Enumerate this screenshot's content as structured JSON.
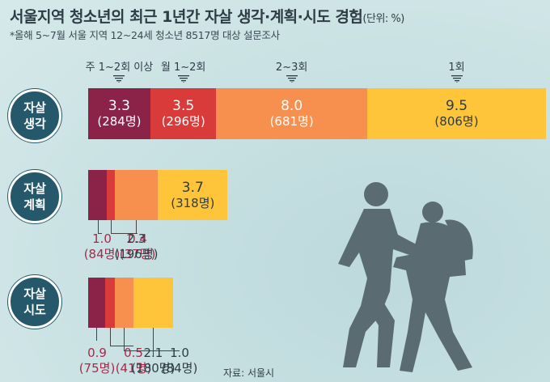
{
  "title": "서울지역 청소년의 최근 1년간 자살 생각·계획·시도 경험",
  "unit": "(단위: %)",
  "subtitle": "*올해 5~7월 서울 지역 12~24세 청소년 8517명 대상 설문조사",
  "source": "자료: 서울시",
  "colors": {
    "weekly": "#8b2348",
    "monthly": "#d93a3a",
    "two_three": "#f7904f",
    "once": "#fec43a",
    "badge": "#24586a",
    "figure": "#5a6c72"
  },
  "chart_data": {
    "type": "bar",
    "orientation": "horizontal",
    "stacked": true,
    "title": "서울지역 청소년의 최근 1년간 자살 생각·계획·시도 경험",
    "unit": "%",
    "series_names": [
      "주 1~2회 이상",
      "월 1~2회",
      "2~3회",
      "1회"
    ],
    "rows": [
      {
        "label_line1": "자살",
        "label_line2": "생각",
        "segments": [
          {
            "series": "주 1~2회 이상",
            "value": 3.3,
            "value_text": "3.3",
            "count_text": "(284명)"
          },
          {
            "series": "월 1~2회",
            "value": 3.5,
            "value_text": "3.5",
            "count_text": "(296명)"
          },
          {
            "series": "2~3회",
            "value": 8.0,
            "value_text": "8.0",
            "count_text": "(681명)"
          },
          {
            "series": "1회",
            "value": 9.5,
            "value_text": "9.5",
            "count_text": "(806명)"
          }
        ]
      },
      {
        "label_line1": "자살",
        "label_line2": "계획",
        "segments": [
          {
            "series": "주 1~2회 이상",
            "value": 1.0,
            "value_text": "1.0",
            "count_text": "(84명)"
          },
          {
            "series": "월 1~2회",
            "value": 0.4,
            "value_text": "0.4",
            "count_text": "(37명)"
          },
          {
            "series": "2~3회",
            "value": 2.3,
            "value_text": "2.3",
            "count_text": "(196명)"
          },
          {
            "series": "1회",
            "value": 3.7,
            "value_text": "3.7",
            "count_text": "(318명)"
          }
        ]
      },
      {
        "label_line1": "자살",
        "label_line2": "시도",
        "segments": [
          {
            "series": "주 1~2회 이상",
            "value": 0.9,
            "value_text": "0.9",
            "count_text": "(75명)"
          },
          {
            "series": "월 1~2회",
            "value": 0.5,
            "value_text": "0.5",
            "count_text": "(41명)"
          },
          {
            "series": "2~3회",
            "value": 1.0,
            "value_text": "1.0",
            "count_text": "(84명)"
          },
          {
            "series": "1회",
            "value": 2.1,
            "value_text": "2.1",
            "count_text": "(180명)"
          }
        ]
      }
    ]
  }
}
